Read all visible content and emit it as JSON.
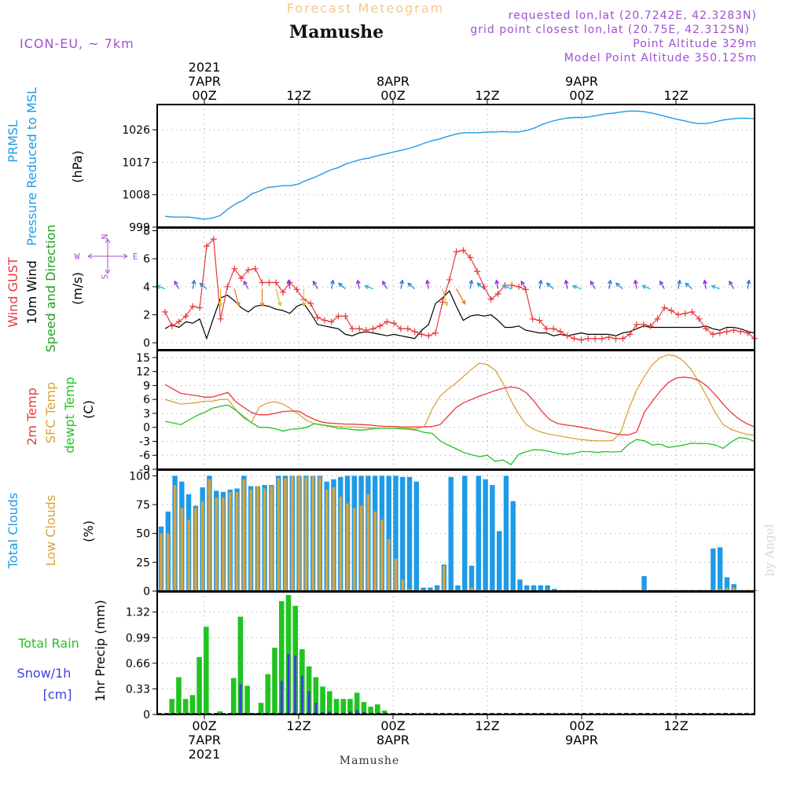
{
  "header": {
    "supertitle": "Forecast Meteogram",
    "title": "Mamushe",
    "model": "ICON-EU, ~ 7km",
    "requested": "requested lon,lat (20.7242E, 42.3283N)",
    "gridpoint": "grid point closest lon,lat (20.75E, 42.3125N)",
    "point_alt": "Point Altitude 329m",
    "model_alt": "Model Point Altitude 350.125m",
    "watermark": "by Angel",
    "footer": "Mamushe"
  },
  "time_axis": {
    "top": [
      {
        "t": 0,
        "lines": [
          "2021",
          "7APR",
          "00Z"
        ]
      },
      {
        "t": 12,
        "lines": [
          "12Z"
        ]
      },
      {
        "t": 24,
        "lines": [
          "8APR",
          "00Z"
        ]
      },
      {
        "t": 36,
        "lines": [
          "12Z"
        ]
      },
      {
        "t": 48,
        "lines": [
          "9APR",
          "00Z"
        ]
      },
      {
        "t": 60,
        "lines": [
          "12Z"
        ]
      }
    ],
    "bottom": [
      {
        "t": 0,
        "lines": [
          "00Z",
          "7APR",
          "2021"
        ]
      },
      {
        "t": 12,
        "lines": [
          "12Z"
        ]
      },
      {
        "t": 24,
        "lines": [
          "00Z",
          "8APR"
        ]
      },
      {
        "t": 36,
        "lines": [
          "12Z"
        ]
      },
      {
        "t": 48,
        "lines": [
          "00Z",
          "9APR"
        ]
      },
      {
        "t": 60,
        "lines": [
          "12Z"
        ]
      }
    ]
  },
  "colors": {
    "pressure": "#1E9BE6",
    "gust": "#E8393C",
    "wind": "#000000",
    "temp": "#E8393C",
    "sfc": "#D9A23A",
    "dewpt": "#20C420",
    "total_clouds": "#1E9BE6",
    "low_clouds": "#D9A23A",
    "rain": "#20C420",
    "snow": "#3E3EE0",
    "purple": "#A050D0"
  },
  "chart_data": [
    {
      "type": "line",
      "id": "pressure",
      "ylabel_lines": [
        "PRMSL",
        "Pressure Reduced to MSL"
      ],
      "unit": "(hPa)",
      "yticks": [
        999,
        1008,
        1017,
        1026
      ],
      "ylim": [
        999,
        1033
      ],
      "x_hours": [
        -5,
        -4,
        -3,
        -2,
        -1,
        0,
        1,
        2,
        3,
        4,
        5,
        6,
        7,
        8,
        9,
        10,
        11,
        12,
        13,
        14,
        15,
        16,
        17,
        18,
        19,
        20,
        21,
        22,
        23,
        24,
        25,
        26,
        27,
        28,
        29,
        30,
        31,
        32,
        33,
        34,
        35,
        36,
        37,
        38,
        39,
        40,
        41,
        42,
        43,
        44,
        45,
        46,
        47,
        48,
        49,
        50,
        51,
        52,
        53,
        54,
        55,
        56,
        57,
        58,
        59,
        60,
        61,
        62,
        63,
        64,
        65,
        66,
        67,
        68,
        69,
        70
      ],
      "values": [
        1002,
        1001.8,
        1001.8,
        1001.8,
        1001.5,
        1001.2,
        1001.5,
        1002.2,
        1004,
        1005.5,
        1006.5,
        1008.2,
        1009,
        1010,
        1010.2,
        1010.5,
        1010.5,
        1011,
        1012,
        1012.8,
        1013.8,
        1014.8,
        1015.5,
        1016.5,
        1017.2,
        1017.8,
        1018.2,
        1018.8,
        1019.3,
        1019.8,
        1020.3,
        1020.8,
        1021.5,
        1022.3,
        1023,
        1023.5,
        1024.2,
        1024.8,
        1025.2,
        1025.2,
        1025.2,
        1025.4,
        1025.4,
        1025.5,
        1025.4,
        1025.4,
        1025.8,
        1026.5,
        1027.5,
        1028.2,
        1028.8,
        1029.2,
        1029.4,
        1029.4,
        1029.6,
        1030,
        1030.4,
        1030.6,
        1030.9,
        1031.2,
        1031.2,
        1031,
        1030.6,
        1030.1,
        1029.5,
        1029,
        1028.5,
        1028,
        1027.7,
        1027.8,
        1028.2,
        1028.7,
        1029,
        1029.2,
        1029.2,
        1029.1
      ]
    },
    {
      "type": "line",
      "id": "wind",
      "ylabel_lines": [
        "Wind GUST",
        "10m Wind",
        "Speed and Direction"
      ],
      "unit": "(m/s)",
      "yticks": [
        0,
        2,
        4,
        6,
        8
      ],
      "ylim": [
        -0.5,
        8.2
      ],
      "compass": {
        "n": "N",
        "s": "S",
        "w": "W",
        "e": "E"
      },
      "series": [
        {
          "name": "Wind GUST",
          "values": [
            2.2,
            1.2,
            1.5,
            1.9,
            2.6,
            2.5,
            6.9,
            7.4,
            1.7,
            4,
            5.3,
            4.6,
            5.2,
            5.3,
            4.3,
            4.3,
            4.3,
            3.6,
            4.3,
            3.8,
            3.1,
            2.8,
            1.8,
            1.6,
            1.5,
            1.9,
            1.9,
            1,
            1,
            0.9,
            1,
            1.2,
            1.5,
            1.4,
            1,
            1,
            0.8,
            0.6,
            0.5,
            0.7,
            2.9,
            4.5,
            6.5,
            6.6,
            6.1,
            5.1,
            4,
            3.1,
            3.5,
            4.1,
            4.1,
            4,
            3.8,
            1.7,
            1.6,
            1,
            1,
            0.8,
            0.5,
            0.3,
            0.2,
            0.3,
            0.3,
            0.3,
            0.4,
            0.3,
            0.3,
            0.6,
            1.3,
            1.3,
            1.2,
            1.7,
            2.5,
            2.3,
            2,
            2.1,
            2.2,
            1.7,
            1,
            0.6,
            0.7,
            0.8,
            0.9,
            0.8,
            0.7,
            0.3
          ]
        },
        {
          "name": "10m Wind",
          "values": [
            1,
            1.3,
            1.1,
            1.5,
            1.4,
            1.7,
            0.3,
            1.8,
            3.2,
            3.4,
            3,
            2.5,
            2.2,
            2.6,
            2.7,
            2.6,
            2.4,
            2.3,
            2.1,
            2.6,
            2.8,
            2.1,
            1.3,
            1.2,
            1.1,
            1,
            0.6,
            0.5,
            0.7,
            0.8,
            0.7,
            0.6,
            0.5,
            0.6,
            0.5,
            0.4,
            0.3,
            0.9,
            1.3,
            2.8,
            3.2,
            3.7,
            2.6,
            1.6,
            1.9,
            2,
            1.9,
            2,
            1.6,
            1.1,
            1.1,
            1.2,
            0.9,
            0.8,
            0.7,
            0.7,
            0.5,
            0.6,
            0.5,
            0.6,
            0.7,
            0.6,
            0.6,
            0.6,
            0.6,
            0.5,
            0.7,
            0.8,
            1,
            1.2,
            1.1,
            1.1,
            1.1,
            1.1,
            1.1,
            1.1,
            1.1,
            1.1,
            1.2,
            1,
            0.9,
            1.1,
            1.1,
            1,
            0.8,
            0.7
          ]
        }
      ]
    },
    {
      "type": "line",
      "id": "temp",
      "ylabel_lines": [
        "2m Temp",
        "SFC Temp",
        "dewpt Temp"
      ],
      "unit": "(C)",
      "yticks": [
        -9,
        -6,
        -3,
        0,
        3,
        6,
        9,
        12,
        15
      ],
      "ylim": [
        -9,
        16.5
      ],
      "x_hours": [
        -5,
        -3,
        -1,
        0,
        1,
        2,
        3,
        4,
        5,
        6,
        7,
        8,
        9,
        10,
        11,
        12,
        13,
        14,
        15,
        16,
        17,
        18,
        19,
        20,
        21,
        22,
        23,
        24,
        25,
        26,
        27,
        28,
        29,
        30,
        31,
        32,
        33,
        34,
        35,
        36,
        37,
        38,
        39,
        40,
        41,
        42,
        43,
        44,
        45,
        46,
        47,
        48,
        49,
        50,
        51,
        52,
        53,
        54,
        55,
        56,
        57,
        58,
        59,
        60,
        61,
        62,
        63,
        64,
        65,
        66,
        67,
        68,
        69,
        70
      ],
      "series": [
        {
          "name": "2m Temp",
          "values": [
            9.2,
            7.3,
            6.8,
            6.5,
            6.5,
            7,
            7.5,
            5.5,
            4.3,
            3.2,
            2.7,
            2.7,
            3,
            3.4,
            3.5,
            3.5,
            2.5,
            1.7,
            1.1,
            0.9,
            0.8,
            0.7,
            0.7,
            0.6,
            0.5,
            0.3,
            0.2,
            0.2,
            0.1,
            0.1,
            0.1,
            0.1,
            0.2,
            0.6,
            2.4,
            4.2,
            5.3,
            6,
            6.7,
            7.3,
            7.9,
            8.4,
            8.7,
            8.4,
            7.4,
            5.5,
            3.3,
            1.6,
            0.8,
            0.5,
            0.3,
            0,
            -0.3,
            -0.6,
            -0.9,
            -1.3,
            -1.6,
            -1.6,
            -1,
            3.3,
            5.6,
            7.8,
            9.6,
            10.6,
            10.8,
            10.6,
            10,
            8.8,
            7,
            5,
            3.2,
            1.8,
            0.8,
            0.1
          ]
        },
        {
          "name": "SFC Temp",
          "values": [
            6,
            5,
            5.3,
            5.6,
            5.6,
            6,
            6,
            3.8,
            2,
            1.1,
            4.4,
            5.2,
            5.5,
            5,
            4,
            2.8,
            1.5,
            0.8,
            0.5,
            0.3,
            0.2,
            0.1,
            0.1,
            0,
            -0.1,
            -0.2,
            -0.2,
            -0.2,
            -0.2,
            -0.2,
            -0.3,
            0.2,
            4,
            6.7,
            8.2,
            9.5,
            11,
            12.5,
            13.8,
            13.5,
            12.3,
            9.5,
            5.8,
            2.8,
            0.5,
            -0.5,
            -1.1,
            -1.5,
            -1.8,
            -2.1,
            -2.4,
            -2.6,
            -2.8,
            -2.9,
            -2.9,
            -2.8,
            -1,
            4,
            8,
            11,
            13.5,
            15,
            15.6,
            15.3,
            14.2,
            12.3,
            9.5,
            6.4,
            3.2,
            0.6,
            -0.4,
            -1,
            -1.5,
            -1.7
          ]
        },
        {
          "name": "dewpt Temp",
          "values": [
            1.3,
            0.6,
            2.5,
            3.2,
            4.1,
            4.5,
            4.8,
            3.7,
            2.3,
            1,
            0,
            0,
            -0.3,
            -0.8,
            -0.4,
            -0.3,
            0,
            0.8,
            0.5,
            0.2,
            -0.2,
            -0.3,
            -0.5,
            -0.6,
            -0.4,
            -0.2,
            -0.2,
            -0.2,
            -0.3,
            -0.4,
            -0.6,
            -1.1,
            -1.3,
            -2.9,
            -3.8,
            -4.6,
            -5.4,
            -5.9,
            -6.3,
            -6,
            -7.3,
            -7,
            -8,
            -5.8,
            -5.2,
            -4.8,
            -4.9,
            -5.2,
            -5.6,
            -5.8,
            -5.6,
            -5.2,
            -5.2,
            -5.4,
            -5.2,
            -5.3,
            -5.2,
            -3.6,
            -2.6,
            -2.9,
            -3.8,
            -3.6,
            -4.3,
            -4.1,
            -3.8,
            -3.4,
            -3.5,
            -3.5,
            -3.8,
            -4.5,
            -3.2,
            -2.2,
            -2.4,
            -3
          ]
        }
      ]
    },
    {
      "type": "bar",
      "id": "clouds",
      "ylabel_lines": [
        "Total Clouds",
        "Low Clouds"
      ],
      "unit": "(%)",
      "yticks": [
        0,
        25,
        50,
        75,
        100
      ],
      "ylim": [
        0,
        105
      ],
      "series": [
        {
          "name": "Total Clouds",
          "values": [
            56,
            69,
            100,
            95,
            84,
            74,
            90,
            100,
            87,
            86,
            88,
            89,
            100,
            91,
            91,
            92,
            92,
            100,
            100,
            100,
            100,
            100,
            100,
            100,
            95,
            97,
            99,
            100,
            100,
            100,
            100,
            100,
            100,
            100,
            100,
            99,
            99,
            95,
            3,
            3,
            5,
            23,
            99,
            5,
            100,
            22,
            100,
            97,
            92,
            52,
            100,
            78,
            10,
            5,
            5,
            5,
            5,
            2,
            1,
            1,
            1,
            1,
            1,
            0,
            1,
            1,
            1,
            1,
            1,
            1,
            13,
            1,
            1,
            1,
            1,
            1,
            1,
            1,
            1,
            1,
            37,
            38,
            12,
            6,
            1,
            1,
            1
          ]
        },
        {
          "name": "Low Clouds",
          "values": [
            50,
            50,
            92,
            72,
            62,
            72,
            78,
            97,
            81,
            81,
            86,
            86,
            97,
            88,
            91,
            89,
            91,
            98,
            98,
            100,
            100,
            99,
            100,
            99,
            88,
            90,
            82,
            76,
            72,
            74,
            84,
            69,
            62,
            45,
            28,
            10,
            2,
            1,
            1,
            1,
            1,
            22,
            1,
            1,
            0,
            3,
            1,
            1,
            1,
            1,
            1,
            1,
            1,
            1,
            1,
            1,
            1,
            1,
            1,
            1,
            1,
            1,
            1,
            1,
            1,
            1,
            1,
            1,
            1,
            1,
            1,
            1,
            1,
            1,
            1,
            1,
            1,
            1,
            1,
            1,
            1,
            2,
            3,
            3,
            1,
            1,
            1
          ]
        }
      ]
    },
    {
      "type": "bar",
      "id": "precip",
      "ylabel_lines": [
        "1hr Precip (mm)"
      ],
      "side_labels": [
        "Total  Rain",
        "Snow/1h",
        "[cm]"
      ],
      "yticks": [
        0,
        0.33,
        0.66,
        0.99,
        1.32
      ],
      "ylim": [
        0,
        1.58
      ],
      "series": [
        {
          "name": "Total Rain",
          "values": [
            0,
            0.2,
            0.48,
            0.2,
            0.25,
            0.74,
            1.13,
            0,
            0.04,
            0,
            0.47,
            1.26,
            0.37,
            0.02,
            0.15,
            0.52,
            0.86,
            1.46,
            1.54,
            1.4,
            0.84,
            0.62,
            0.48,
            0.36,
            0.3,
            0.2,
            0.2,
            0.2,
            0.28,
            0.16,
            0.1,
            0.13,
            0.05,
            0,
            0,
            0,
            0,
            0,
            0,
            0,
            0,
            0,
            0,
            0,
            0,
            0,
            0,
            0,
            0,
            0,
            0,
            0,
            0,
            0,
            0,
            0,
            0,
            0,
            0,
            0,
            0,
            0,
            0,
            0,
            0,
            0,
            0,
            0,
            0,
            0,
            0,
            0,
            0,
            0,
            0,
            0,
            0,
            0,
            0,
            0,
            0,
            0,
            0,
            0,
            0,
            0,
            0
          ]
        },
        {
          "name": "Snow/1h",
          "values": [
            0,
            0,
            0,
            0,
            0,
            0,
            0,
            0,
            0,
            0,
            0,
            0.39,
            0.02,
            0,
            0,
            0.02,
            0.02,
            0.43,
            0.78,
            0.76,
            0.5,
            0.3,
            0.15,
            0.03,
            0.04,
            0.02,
            0.02,
            0.04,
            0.06,
            0.03,
            0.01,
            0.02,
            0.01,
            0,
            0,
            0,
            0,
            0,
            0,
            0,
            0,
            0,
            0,
            0,
            0,
            0,
            0,
            0,
            0,
            0,
            0,
            0,
            0,
            0,
            0,
            0,
            0,
            0,
            0,
            0,
            0,
            0,
            0,
            0,
            0,
            0,
            0,
            0,
            0,
            0,
            0,
            0,
            0,
            0,
            0,
            0,
            0,
            0,
            0,
            0,
            0,
            0,
            0,
            0,
            0,
            0,
            0
          ]
        }
      ]
    }
  ]
}
